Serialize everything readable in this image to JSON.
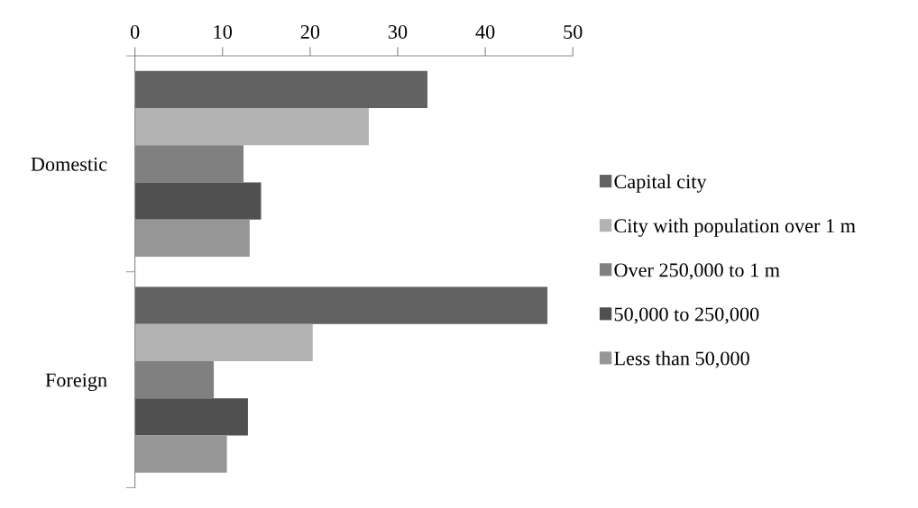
{
  "chart_data": {
    "type": "bar",
    "orientation": "horizontal",
    "categories": [
      "Domestic",
      "Foreign"
    ],
    "series": [
      {
        "name": "Capital city",
        "color": "#626262",
        "values": [
          33.4,
          47.1
        ]
      },
      {
        "name": "City with population over 1 m",
        "color": "#b3b3b3",
        "values": [
          26.7,
          20.3
        ]
      },
      {
        "name": "Over 250,000 to 1 m",
        "color": "#808080",
        "values": [
          12.4,
          9.0
        ]
      },
      {
        "name": "50,000 to 250,000",
        "color": "#505050",
        "values": [
          14.4,
          12.9
        ]
      },
      {
        "name": "Less than 50,000",
        "color": "#969696",
        "values": [
          13.1,
          10.5
        ]
      }
    ],
    "xlim": [
      0,
      50
    ],
    "xticks": [
      0,
      10,
      20,
      30,
      40,
      50
    ],
    "grid": false,
    "legend": "right"
  }
}
